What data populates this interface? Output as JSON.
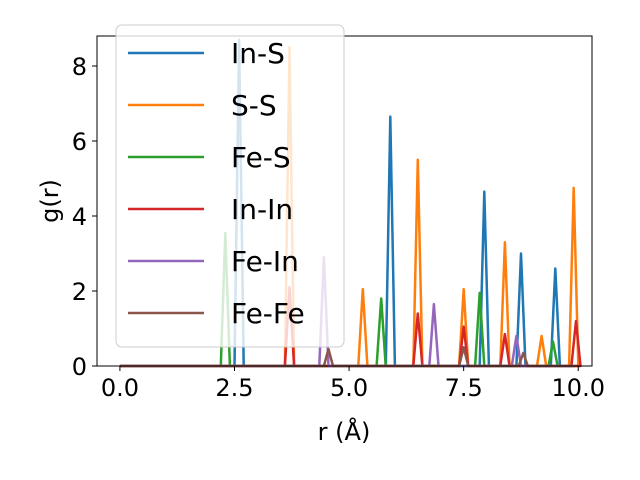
{
  "chart_data": {
    "type": "line",
    "xlabel": "r (Å)",
    "ylabel": "g(r)",
    "xlim": [
      -0.5,
      10.3
    ],
    "ylim": [
      0,
      8.8
    ],
    "xticks": [
      0.0,
      2.5,
      5.0,
      7.5,
      10.0
    ],
    "xtick_labels": [
      "0.0",
      "2.5",
      "5.0",
      "7.5",
      "10.0"
    ],
    "yticks": [
      0,
      2,
      4,
      6,
      8
    ],
    "ytick_labels": [
      "0",
      "2",
      "4",
      "6",
      "8"
    ],
    "legend_position": "top-left",
    "grid": false,
    "series": [
      {
        "name": "In-S",
        "color": "#1f77b4",
        "peaks": [
          [
            2.6,
            8.7
          ],
          [
            5.9,
            6.65
          ],
          [
            7.95,
            4.65
          ],
          [
            8.75,
            3.0
          ],
          [
            9.5,
            2.6
          ]
        ]
      },
      {
        "name": "S-S",
        "color": "#ff7f0e",
        "peaks": [
          [
            3.7,
            8.5
          ],
          [
            5.3,
            2.05
          ],
          [
            6.5,
            5.5
          ],
          [
            7.5,
            2.05
          ],
          [
            8.4,
            3.3
          ],
          [
            9.2,
            0.8
          ],
          [
            9.9,
            4.75
          ]
        ]
      },
      {
        "name": "Fe-S",
        "color": "#2ca02c",
        "peaks": [
          [
            2.3,
            3.55
          ],
          [
            5.7,
            1.8
          ],
          [
            7.85,
            1.95
          ],
          [
            9.45,
            0.65
          ]
        ]
      },
      {
        "name": "In-In",
        "color": "#d62728",
        "peaks": [
          [
            3.7,
            2.1
          ],
          [
            6.5,
            1.4
          ],
          [
            7.5,
            1.05
          ],
          [
            8.4,
            0.85
          ],
          [
            9.95,
            1.2
          ]
        ]
      },
      {
        "name": "Fe-In",
        "color": "#9467bd",
        "peaks": [
          [
            4.45,
            2.9
          ],
          [
            6.85,
            1.65
          ],
          [
            8.65,
            0.8
          ]
        ]
      },
      {
        "name": "Fe-Fe",
        "color": "#8c564b",
        "peaks": [
          [
            4.55,
            0.45
          ],
          [
            7.5,
            0.5
          ],
          [
            8.8,
            0.35
          ]
        ]
      }
    ]
  }
}
